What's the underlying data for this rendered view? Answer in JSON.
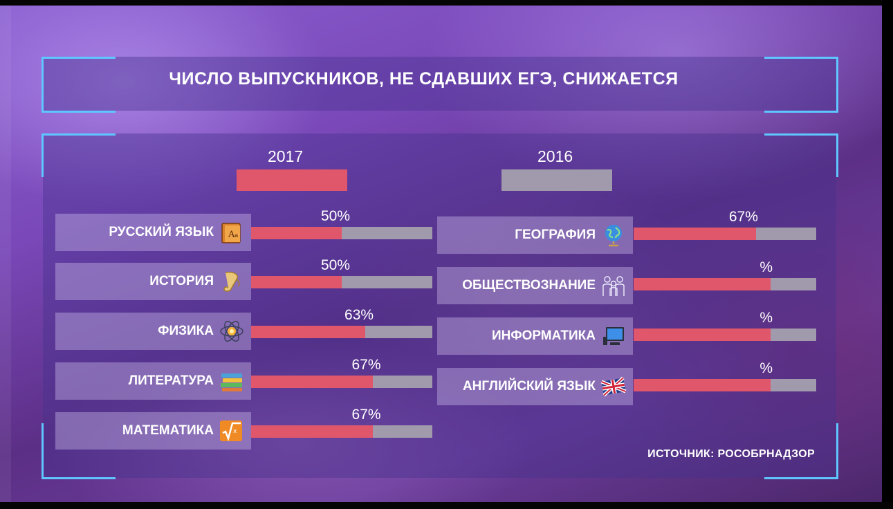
{
  "title": "ЧИСЛО ВЫПУСКНИКОВ, НЕ СДАВШИХ ЕГЭ, СНИЖАЕТСЯ",
  "source": "ИСТОЧНИК: РОСОБРНАДЗОР",
  "legend": {
    "year_2017": "2017",
    "year_2016": "2016",
    "color_2017": "#e0566a",
    "color_2016": "#a09aac"
  },
  "chart_data": {
    "type": "bar",
    "title": "ЧИСЛО ВЫПУСКНИКОВ, НЕ СДАВШИХ ЕГЭ, СНИЖАЕТСЯ",
    "series_names": [
      "2017",
      "2016"
    ],
    "xlim": [
      0,
      100
    ],
    "grid": false,
    "left_column": [
      {
        "subject": "РУССКИЙ ЯЗЫК",
        "icon": "book-icon",
        "label": "50%",
        "value_2017": 50,
        "value_2016": 100
      },
      {
        "subject": "ИСТОРИЯ",
        "icon": "scroll-icon",
        "label": "50%",
        "value_2017": 50,
        "value_2016": 100
      },
      {
        "subject": "ФИЗИКА",
        "icon": "atom-icon",
        "label": "63%",
        "value_2017": 63,
        "value_2016": 100
      },
      {
        "subject": "ЛИТЕРАТУРА",
        "icon": "books-stack-icon",
        "label": "67%",
        "value_2017": 67,
        "value_2016": 100
      },
      {
        "subject": "МАТЕМАТИКА",
        "icon": "square-root-icon",
        "label": "67%",
        "value_2017": 67,
        "value_2016": 100
      }
    ],
    "right_column": [
      {
        "subject": "ГЕОГРАФИЯ",
        "icon": "globe-icon",
        "label": "67%",
        "value_2017": 67,
        "value_2016": 100
      },
      {
        "subject": "ОБЩЕСТВОЗНАНИЕ",
        "icon": "people-icon",
        "label": "%",
        "value_2017": 75,
        "value_2016": 100
      },
      {
        "subject": "ИНФОРМАТИКА",
        "icon": "computer-icon",
        "label": "%",
        "value_2017": 75,
        "value_2016": 100
      },
      {
        "subject": "АНГЛИЙСКИЙ ЯЗЫК",
        "icon": "uk-flag-icon",
        "label": "%",
        "value_2017": 75,
        "value_2016": 100
      }
    ]
  }
}
